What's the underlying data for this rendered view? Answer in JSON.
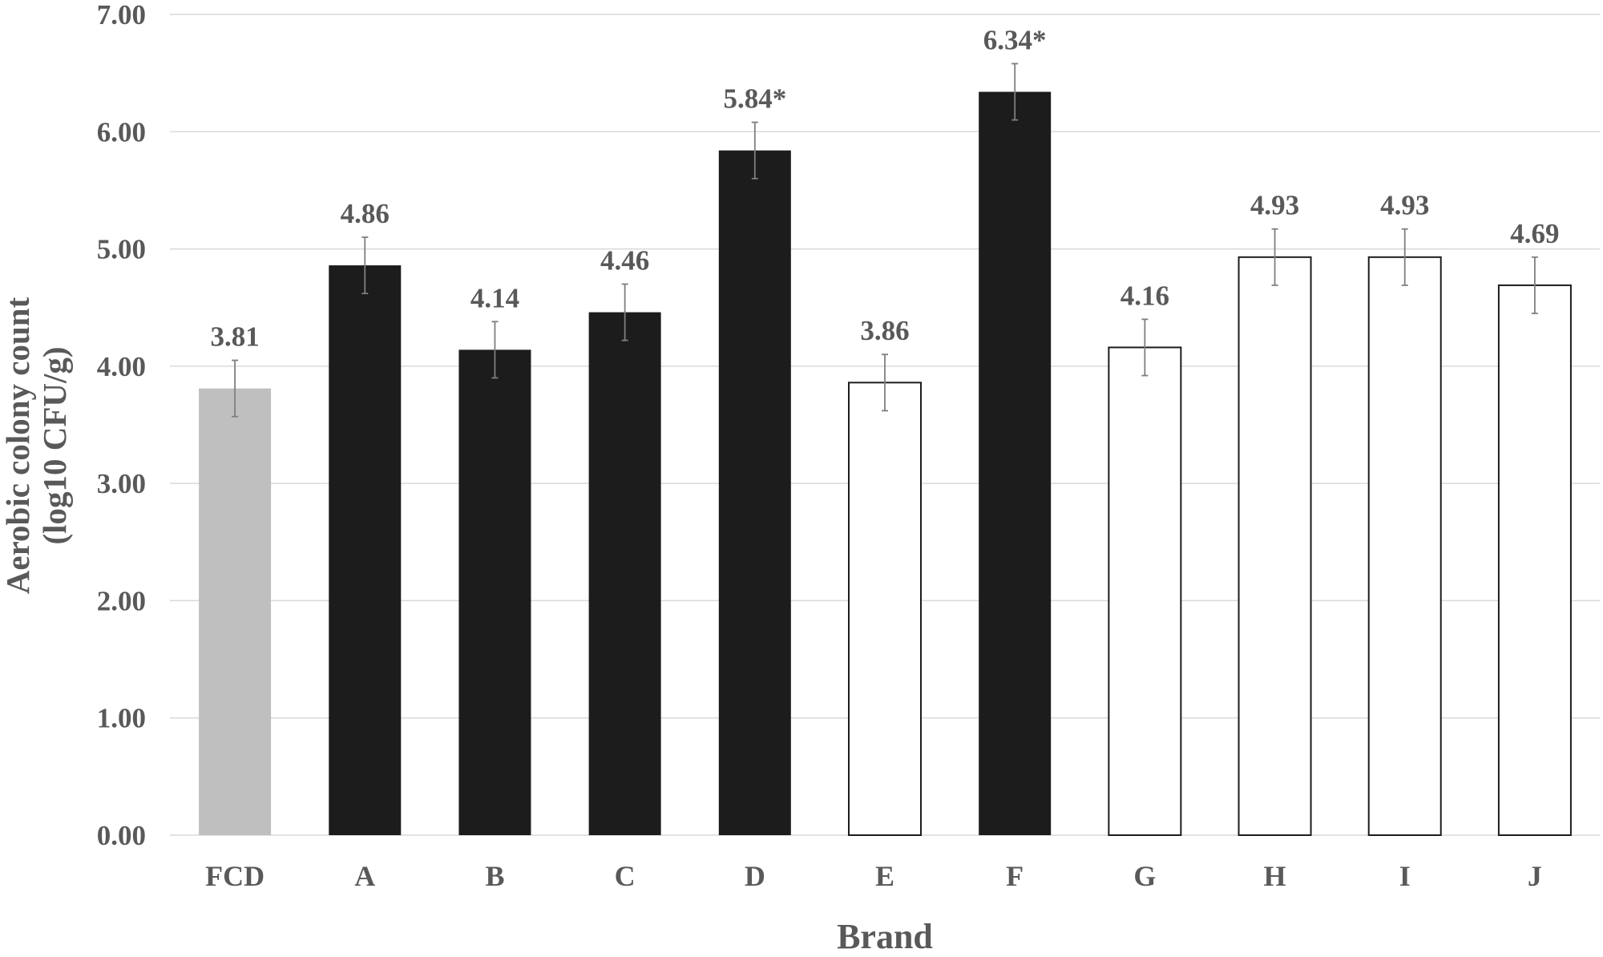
{
  "chart_data": {
    "type": "bar",
    "title": "",
    "xlabel": "Brand",
    "ylabel_lines": [
      "Aerobic colony count",
      "(log10 CFU/g)"
    ],
    "ylim": [
      0,
      7
    ],
    "yticks": [
      "0.00",
      "1.00",
      "2.00",
      "3.00",
      "4.00",
      "5.00",
      "6.00",
      "7.00"
    ],
    "grid": "horizontal",
    "categories": [
      "FCD",
      "A",
      "B",
      "C",
      "D",
      "E",
      "F",
      "G",
      "H",
      "I",
      "J"
    ],
    "values": [
      3.81,
      4.86,
      4.14,
      4.46,
      5.84,
      3.86,
      6.34,
      4.16,
      4.93,
      4.93,
      4.69
    ],
    "value_labels": [
      "3.81",
      "4.86",
      "4.14",
      "4.46",
      "5.84*",
      "3.86",
      "6.34*",
      "4.16",
      "4.93",
      "4.93",
      "4.69"
    ],
    "error": [
      0.24,
      0.24,
      0.24,
      0.24,
      0.24,
      0.24,
      0.24,
      0.24,
      0.24,
      0.24,
      0.24
    ],
    "bar_styles": [
      "gray",
      "black",
      "black",
      "black",
      "black",
      "white",
      "black",
      "white",
      "white",
      "white",
      "white"
    ],
    "colors": {
      "gray": "#bfbfbf",
      "black": "#1c1c1c",
      "white": "#ffffff",
      "outline": "#1c1c1c",
      "grid": "#d9d9d9",
      "axis_text": "#595959",
      "error_bar": "#7f7f7f"
    }
  }
}
